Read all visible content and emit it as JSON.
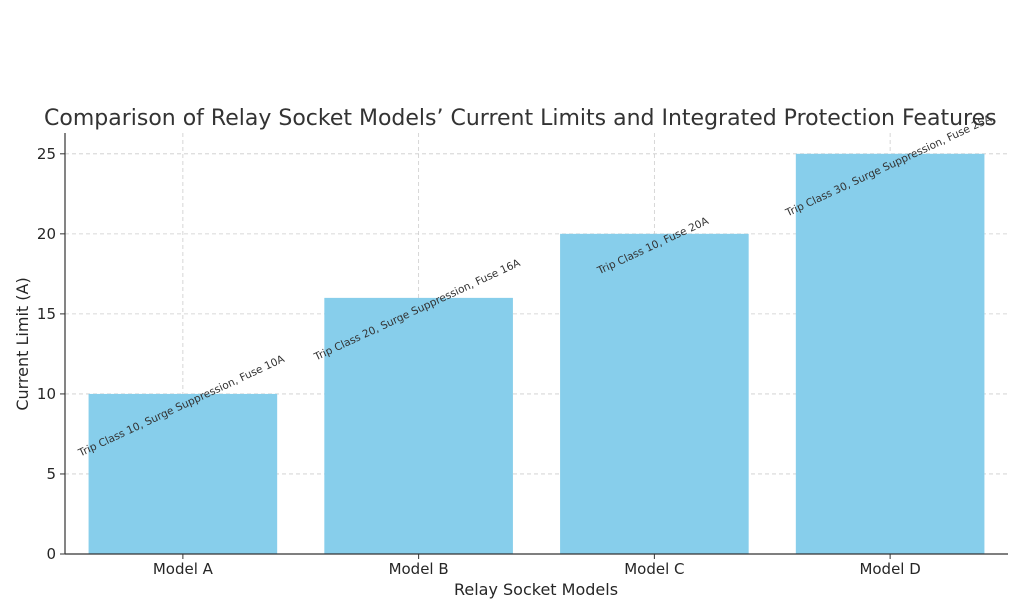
{
  "chart_data": {
    "type": "bar",
    "title": "Comparison of Relay Socket Models’ Current Limits and Integrated Protection Features",
    "xlabel": "Relay Socket Models",
    "ylabel": "Current Limit (A)",
    "categories": [
      "Model A",
      "Model B",
      "Model C",
      "Model D"
    ],
    "values": [
      10,
      16,
      20,
      25
    ],
    "annotations": [
      "Trip Class 10, Surge Suppression, Fuse 10A",
      "Trip Class 20, Surge Suppression, Fuse 16A",
      "Trip Class 10, Fuse 20A",
      "Trip Class 30, Surge Suppression, Fuse 25A"
    ],
    "ylim": [
      0,
      26.3
    ],
    "yticks": [
      "0",
      "5",
      "10",
      "15",
      "20",
      "25"
    ],
    "ytick_values": [
      0,
      5,
      10,
      15,
      20,
      25
    ],
    "grid": true,
    "bar_color": "#87CEEB"
  }
}
